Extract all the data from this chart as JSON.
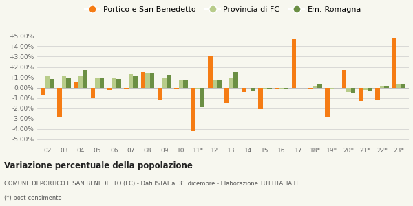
{
  "categories": [
    "02",
    "03",
    "04",
    "05",
    "06",
    "07",
    "08",
    "09",
    "10",
    "11*",
    "12",
    "13",
    "14",
    "15",
    "16",
    "17",
    "18*",
    "19*",
    "20*",
    "21*",
    "22*",
    "23*"
  ],
  "portico": [
    -0.7,
    -2.8,
    0.6,
    -1.0,
    -0.2,
    -0.1,
    1.5,
    -1.2,
    -0.1,
    -4.2,
    3.0,
    -1.5,
    -0.4,
    -2.1,
    -0.1,
    4.7,
    -0.1,
    -2.8,
    1.7,
    -1.3,
    -1.2,
    4.8
  ],
  "provincia": [
    1.1,
    1.2,
    1.2,
    0.9,
    0.9,
    1.3,
    1.4,
    1.0,
    0.8,
    -0.1,
    0.7,
    0.9,
    0.0,
    -0.1,
    -0.1,
    0.0,
    0.2,
    -0.1,
    -0.4,
    -0.2,
    0.2,
    0.3
  ],
  "emilia": [
    0.85,
    0.9,
    1.7,
    0.9,
    0.85,
    1.2,
    1.4,
    1.25,
    0.8,
    -1.9,
    0.75,
    1.5,
    -0.3,
    -0.15,
    -0.15,
    0.0,
    0.3,
    0.0,
    -0.5,
    -0.3,
    0.2,
    0.3
  ],
  "color_portico": "#f57c14",
  "color_provincia": "#b8cc8a",
  "color_emilia": "#6b8f44",
  "title": "Variazione percentuale della popolazione",
  "subtitle": "COMUNE DI PORTICO E SAN BENEDETTO (FC) - Dati ISTAT al 31 dicembre - Elaborazione TUTTITALIA.IT",
  "footnote": "(*) post-censimento",
  "legend_labels": [
    "Portico e San Benedetto",
    "Provincia di FC",
    "Em.-Romagna"
  ],
  "ylim": [
    -5.5,
    5.5
  ],
  "yticks": [
    -5.0,
    -4.0,
    -3.0,
    -2.0,
    -1.0,
    0.0,
    1.0,
    2.0,
    3.0,
    4.0,
    5.0
  ],
  "ytick_labels": [
    "-5.00%",
    "-4.00%",
    "-3.00%",
    "-2.00%",
    "-1.00%",
    "0.00%",
    "+1.00%",
    "+2.00%",
    "+3.00%",
    "+4.00%",
    "+5.00%"
  ],
  "background_color": "#f7f7ef",
  "bar_width": 0.27
}
